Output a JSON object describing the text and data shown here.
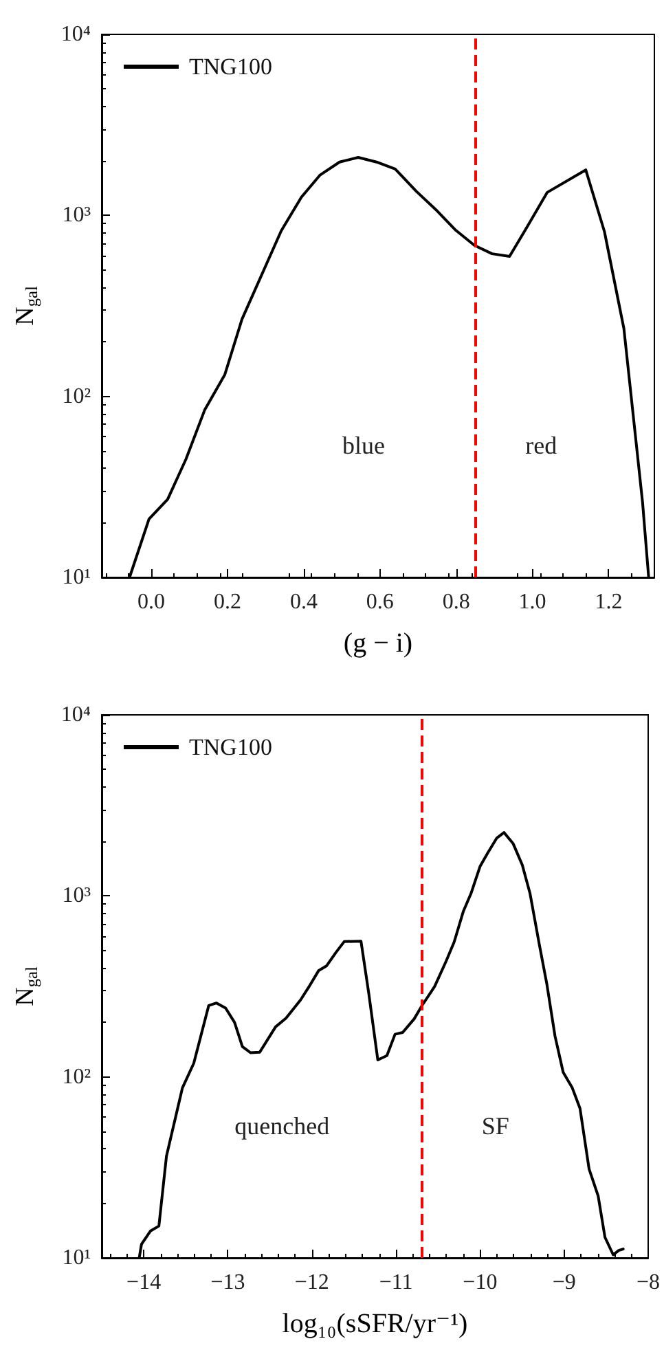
{
  "chart_data": [
    {
      "type": "line",
      "xlabel": "(g − i)",
      "ylabel": "N$_{gal}$",
      "log": "y",
      "legend": "top left",
      "grid": false,
      "marker": "none",
      "line_style": "solid",
      "xlim": [
        -0.13,
        1.32
      ],
      "ylim": [
        10,
        10000
      ],
      "annotations": [
        "blue",
        "red"
      ],
      "xticks": [
        {
          "value": 0,
          "label": "0.0"
        },
        {
          "value": 0.2,
          "label": "0.2"
        },
        {
          "value": 0.4,
          "label": "0.4"
        },
        {
          "value": 0.6,
          "label": "0.6"
        },
        {
          "value": 0.8,
          "label": "0.8"
        },
        {
          "value": 1,
          "label": "1.0"
        },
        {
          "value": 1.2,
          "label": "1.2"
        }
      ],
      "yticks": [
        {
          "value": 10,
          "label": "10¹"
        },
        {
          "value": 100,
          "label": "10²"
        },
        {
          "value": 1000,
          "label": "10³"
        },
        {
          "value": 10000,
          "label": "10⁴"
        }
      ],
      "series": [
        {
          "name": "TNG100",
          "color": "#000000",
          "x": [
            -0.057,
            -0.006,
            0.043,
            0.091,
            0.14,
            0.193,
            0.238,
            0.341,
            0.394,
            0.443,
            0.494,
            0.543,
            0.591,
            0.64,
            0.695,
            0.75,
            0.799,
            0.848,
            0.894,
            0.94,
            0.988,
            1.039,
            1.14,
            1.189,
            1.24,
            1.289,
            1.305
          ],
          "values": [
            10,
            21,
            27,
            45,
            84,
            132,
            267,
            822,
            1262,
            1672,
            1971,
            2090,
            1971,
            1805,
            1361,
            1059,
            827,
            683,
            614,
            593,
            877,
            1340,
            1783,
            813,
            237,
            26,
            10
          ]
        }
      ],
      "ref_lines": [
        {
          "axis": "x",
          "value": 0.85,
          "color": "#ff0000",
          "line_style": "dashed"
        }
      ]
    },
    {
      "type": "line",
      "xlabel": "log₁₀(sSFR/yr⁻¹)",
      "annotations": [
        "quenched",
        "SF"
      ],
      "ylabel": "N$_{gal}$",
      "log": "y",
      "legend": "top left",
      "grid": false,
      "marker": "none",
      "line_style": "solid",
      "xlim": [
        -14.5,
        -8
      ],
      "ylim": [
        10,
        10000
      ],
      "xticks": [
        {
          "value": -14,
          "label": "−14"
        },
        {
          "value": -13,
          "label": "−13"
        },
        {
          "value": -12,
          "label": "−12"
        },
        {
          "value": -11,
          "label": "−11"
        },
        {
          "value": -10,
          "label": "−10"
        },
        {
          "value": -9,
          "label": "−9"
        },
        {
          "value": -8,
          "label": "−8"
        }
      ],
      "yticks": [
        {
          "value": 10,
          "label": "10¹"
        },
        {
          "value": 100,
          "label": "10²"
        },
        {
          "value": 1000,
          "label": "10³"
        },
        {
          "value": 10000,
          "label": "10⁴"
        }
      ],
      "series": [
        {
          "name": "TNG100",
          "color": "#000000",
          "x": [
            -14.054,
            -14.027,
            -13.919,
            -13.82,
            -13.73,
            -13.54,
            -13.405,
            -13.227,
            -13.135,
            -13.027,
            -12.92,
            -12.827,
            -12.73,
            -12.62,
            -12.432,
            -12.308,
            -12.135,
            -12.038,
            -11.919,
            -11.827,
            -11.714,
            -11.616,
            -11.416,
            -11.324,
            -11.216,
            -11.108,
            -11.011,
            -10.92,
            -10.784,
            -10.692,
            -10.54,
            -10.405,
            -10.308,
            -10.2,
            -10.108,
            -10.0,
            -9.908,
            -9.8,
            -9.714,
            -9.605,
            -9.497,
            -9.405,
            -9.297,
            -9.205,
            -9.108,
            -9.011,
            -8.903,
            -8.811,
            -8.703,
            -8.595,
            -8.514,
            -8.416,
            -8.35,
            -8.297
          ],
          "values": [
            10,
            11.9,
            14.1,
            15,
            36.5,
            87,
            119,
            248,
            256,
            240,
            200,
            147,
            136,
            137,
            189,
            211,
            266,
            313,
            387,
            410,
            487,
            559,
            562,
            290,
            124,
            131,
            172,
            176,
            209,
            247,
            316,
            434,
            556,
            818,
            1029,
            1454,
            1728,
            2089,
            2239,
            1939,
            1479,
            1029,
            546,
            325,
            168,
            106,
            87,
            67,
            31,
            22,
            13,
            10.4,
            11,
            11.2
          ]
        }
      ],
      "ref_lines": [
        {
          "axis": "x",
          "value": -10.7,
          "color": "#ff0000",
          "line_style": "dashed"
        }
      ]
    }
  ]
}
